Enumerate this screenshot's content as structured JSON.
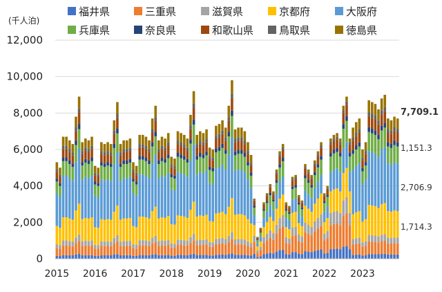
{
  "chart_data": {
    "type": "bar",
    "stacked": true,
    "unit_label": "(千人泊)",
    "x_tick_labels": [
      "2015",
      "2016",
      "2017",
      "2018",
      "2019",
      "2020",
      "2021",
      "2022",
      "2023"
    ],
    "ylim": [
      0,
      12000
    ],
    "y_ticks": [
      0,
      2000,
      4000,
      6000,
      8000,
      10000,
      12000
    ],
    "y_tick_labels": [
      "0",
      "2,000",
      "4,000",
      "6,000",
      "8,000",
      "10,000",
      "12,000"
    ],
    "grid": true,
    "legend_position": "top",
    "series": [
      {
        "name": "福井県",
        "color": "#4472c4"
      },
      {
        "name": "三重県",
        "color": "#ed7d31"
      },
      {
        "name": "滋賀県",
        "color": "#a5a5a5"
      },
      {
        "name": "京都府",
        "color": "#ffc000"
      },
      {
        "name": "大阪府",
        "color": "#5b9bd5"
      },
      {
        "name": "兵庫県",
        "color": "#70ad47"
      },
      {
        "name": "奈良県",
        "color": "#264478"
      },
      {
        "name": "和歌山県",
        "color": "#9e480e"
      },
      {
        "name": "鳥取県",
        "color": "#636363"
      },
      {
        "name": "徳島県",
        "color": "#997300"
      }
    ],
    "annotations": [
      {
        "label": "7,709.1",
        "value": 7709.1,
        "bold": true
      },
      {
        "label": "1,151.3",
        "value": 1151.3,
        "bold": false
      },
      {
        "label": "2,706.9",
        "value": 2706.9,
        "bold": false
      },
      {
        "label": "1,714.3",
        "value": 1714.3,
        "bold": false
      }
    ],
    "monthly_totals": [
      5300,
      5000,
      6700,
      6700,
      6500,
      6300,
      7800,
      8900,
      6400,
      6600,
      6500,
      6700,
      5100,
      5000,
      6400,
      6300,
      6400,
      6300,
      7600,
      8600,
      6300,
      6500,
      6500,
      6600,
      5300,
      5100,
      6800,
      6800,
      6700,
      6500,
      7700,
      8400,
      6500,
      6700,
      6600,
      6900,
      5600,
      5500,
      7000,
      6900,
      6800,
      6600,
      7900,
      9200,
      6800,
      7000,
      6900,
      7100,
      6100,
      6000,
      7300,
      7400,
      7600,
      7200,
      8400,
      9800,
      7100,
      7200,
      7200,
      7000,
      6400,
      5700,
      3300,
      1200,
      1700,
      3100,
      3600,
      4100,
      3700,
      4900,
      5900,
      6300,
      3100,
      2900,
      4500,
      4600,
      3500,
      3200,
      5200,
      4900,
      4600,
      5400,
      5900,
      6400,
      3600,
      4000,
      6600,
      6800,
      6900,
      6600,
      8400,
      8900,
      6600,
      7200,
      7500,
      7700,
      6000,
      6400,
      8700,
      8600,
      8500,
      8200,
      8800,
      9000,
      7700,
      7600,
      7800,
      7700
    ]
  }
}
